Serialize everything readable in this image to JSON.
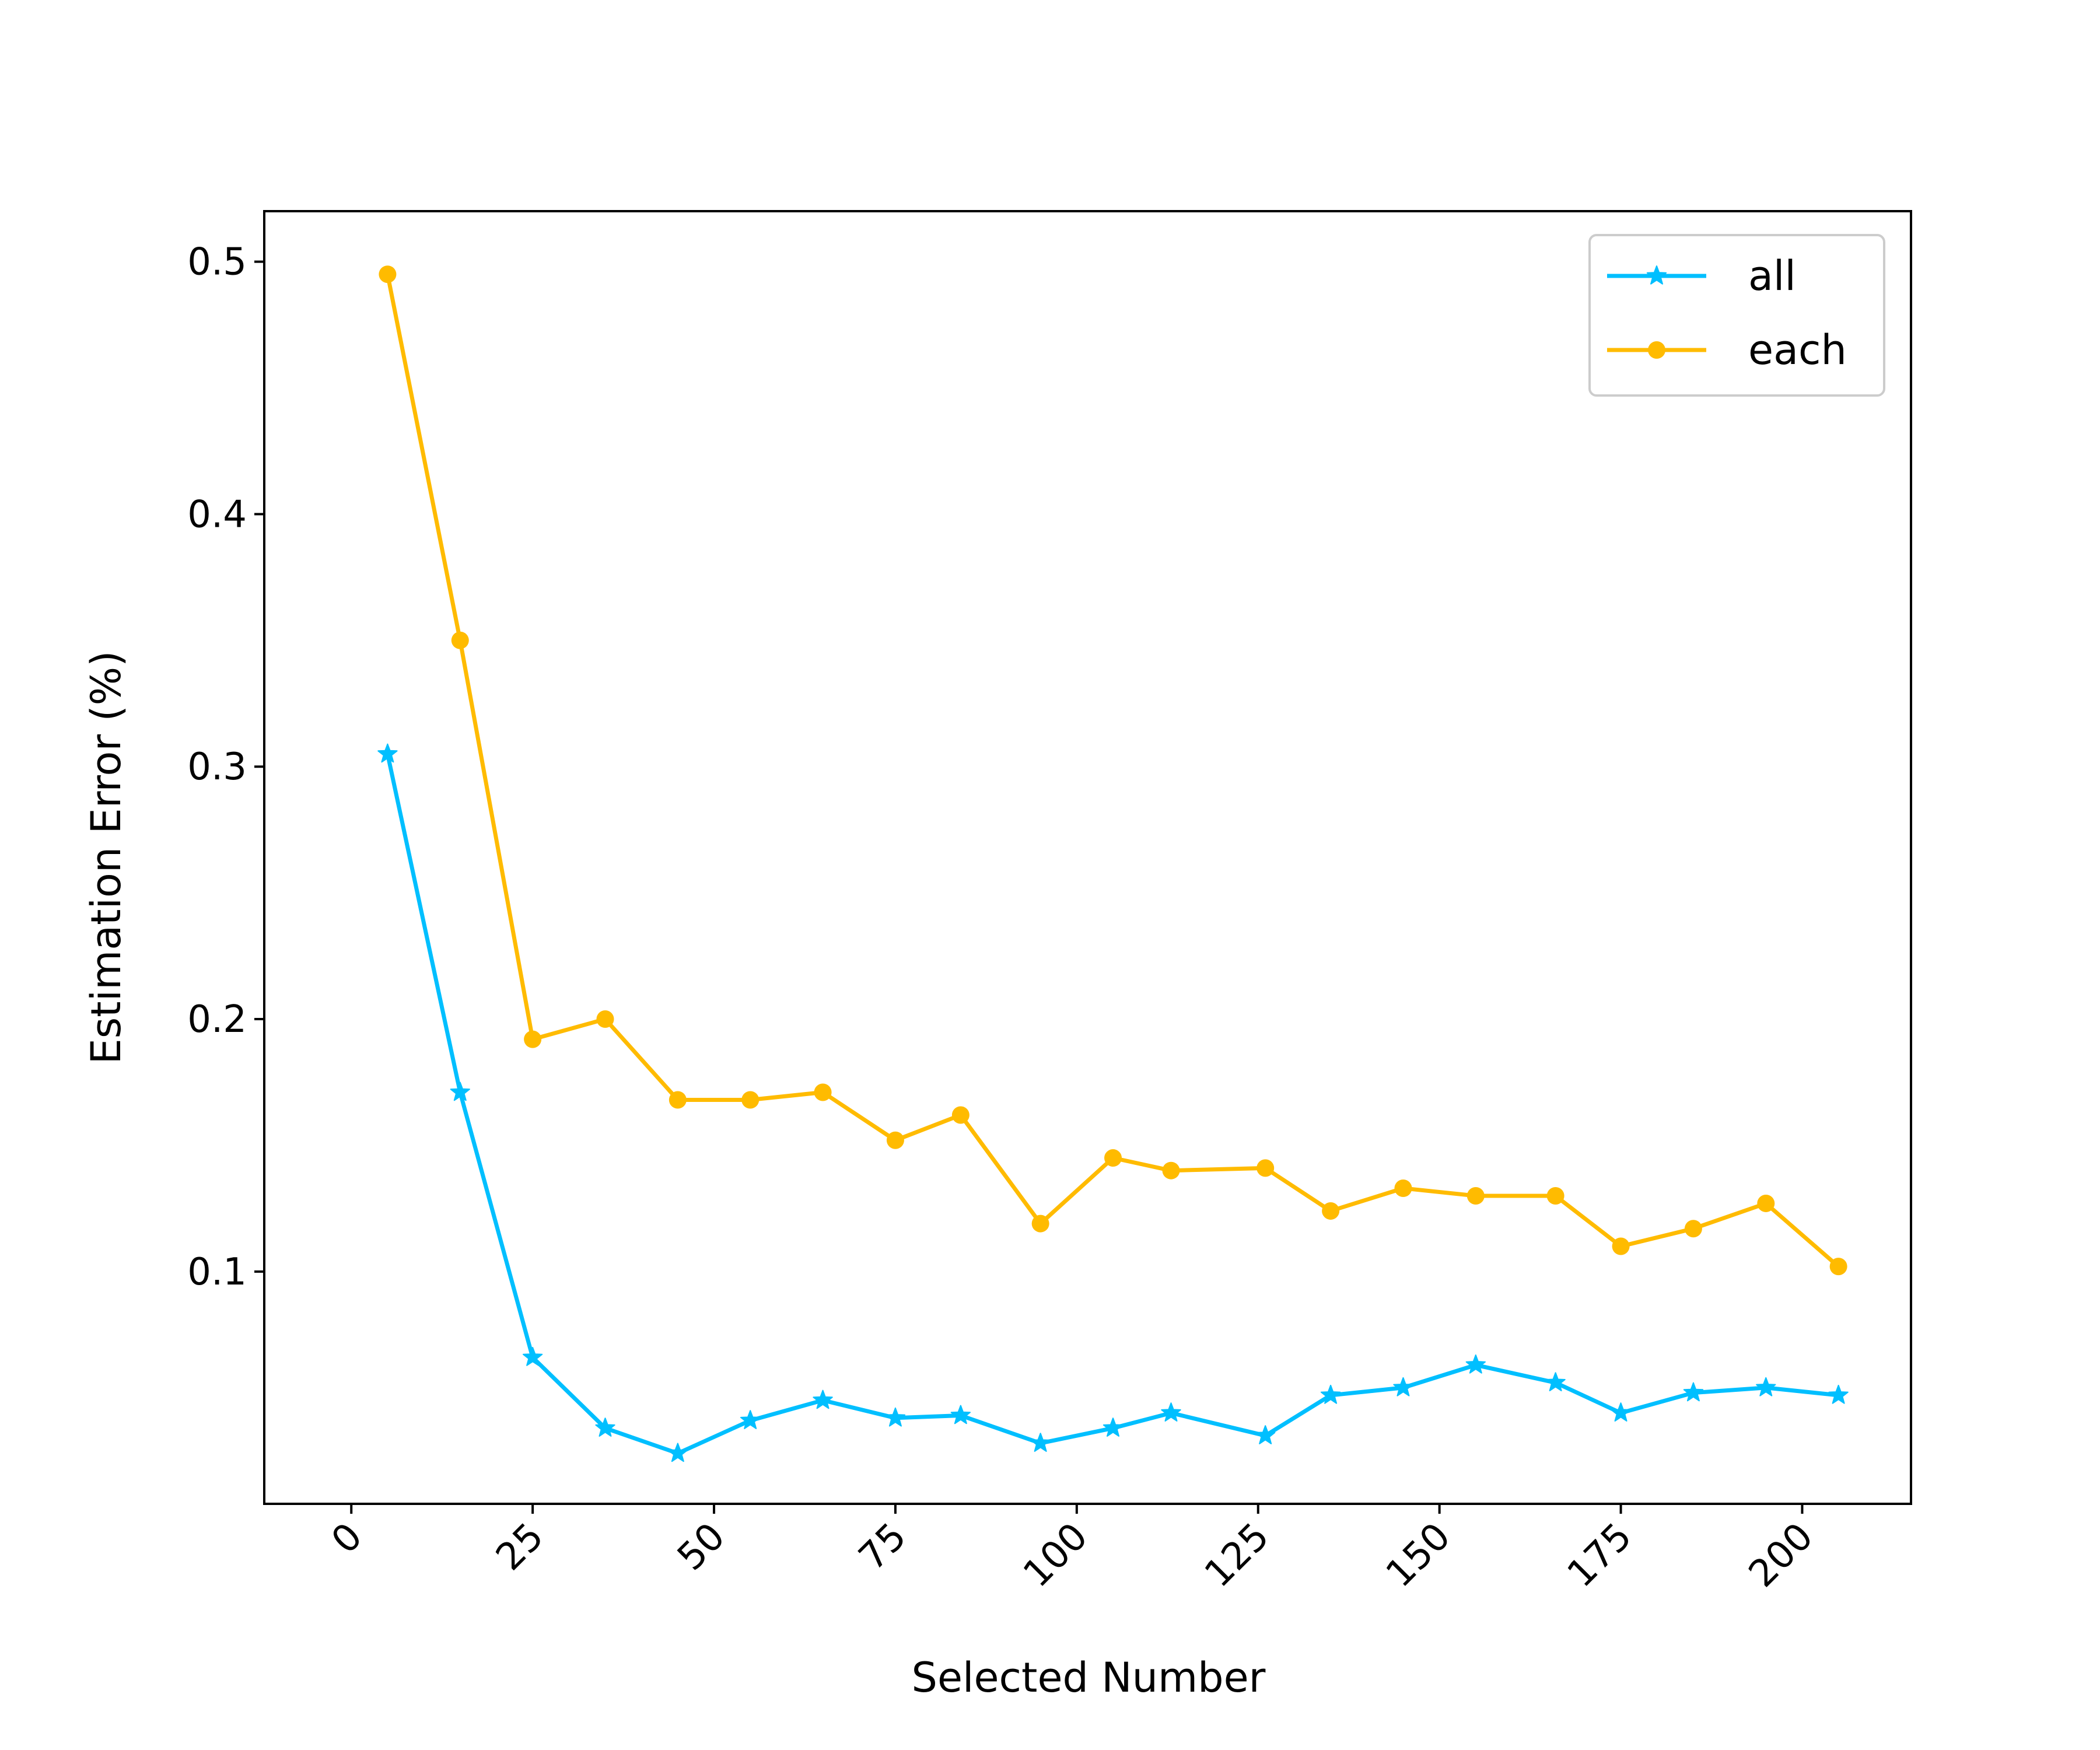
{
  "chart_data": {
    "type": "line",
    "title": "",
    "xlabel": "Selected Number",
    "ylabel": "Estimation Error (%)",
    "xlim": [
      -12,
      215
    ],
    "ylim": [
      0.008,
      0.52
    ],
    "xticks": [
      0,
      25,
      50,
      75,
      100,
      125,
      150,
      175,
      200
    ],
    "yticks": [
      0.1,
      0.2,
      0.3,
      0.4,
      0.5
    ],
    "xtick_labels": [
      "0",
      "25",
      "50",
      "75",
      "100",
      "125",
      "150",
      "175",
      "200"
    ],
    "ytick_labels": [
      "0.1",
      "0.2",
      "0.3",
      "0.4",
      "0.5"
    ],
    "xtick_rotation": -45,
    "grid": false,
    "legend_position": "top-right",
    "series": [
      {
        "name": "all",
        "color": "#00bfff",
        "marker": "star",
        "x": [
          5,
          15,
          25,
          35,
          45,
          55,
          65,
          75,
          84,
          95,
          105,
          113,
          126,
          135,
          145,
          155,
          166,
          175,
          185,
          195,
          205
        ],
        "y": [
          0.305,
          0.171,
          0.066,
          0.038,
          0.028,
          0.041,
          0.049,
          0.042,
          0.043,
          0.032,
          0.038,
          0.044,
          0.035,
          0.051,
          0.054,
          0.063,
          0.056,
          0.044,
          0.052,
          0.054,
          0.051
        ]
      },
      {
        "name": "each",
        "color": "#ffbb00",
        "marker": "circle",
        "x": [
          5,
          15,
          25,
          35,
          45,
          55,
          65,
          75,
          84,
          95,
          105,
          113,
          126,
          135,
          145,
          155,
          166,
          175,
          185,
          195,
          205
        ],
        "y": [
          0.495,
          0.35,
          0.192,
          0.2,
          0.168,
          0.168,
          0.171,
          0.152,
          0.162,
          0.119,
          0.145,
          0.14,
          0.141,
          0.124,
          0.133,
          0.13,
          0.13,
          0.11,
          0.117,
          0.127,
          0.102
        ]
      }
    ]
  }
}
